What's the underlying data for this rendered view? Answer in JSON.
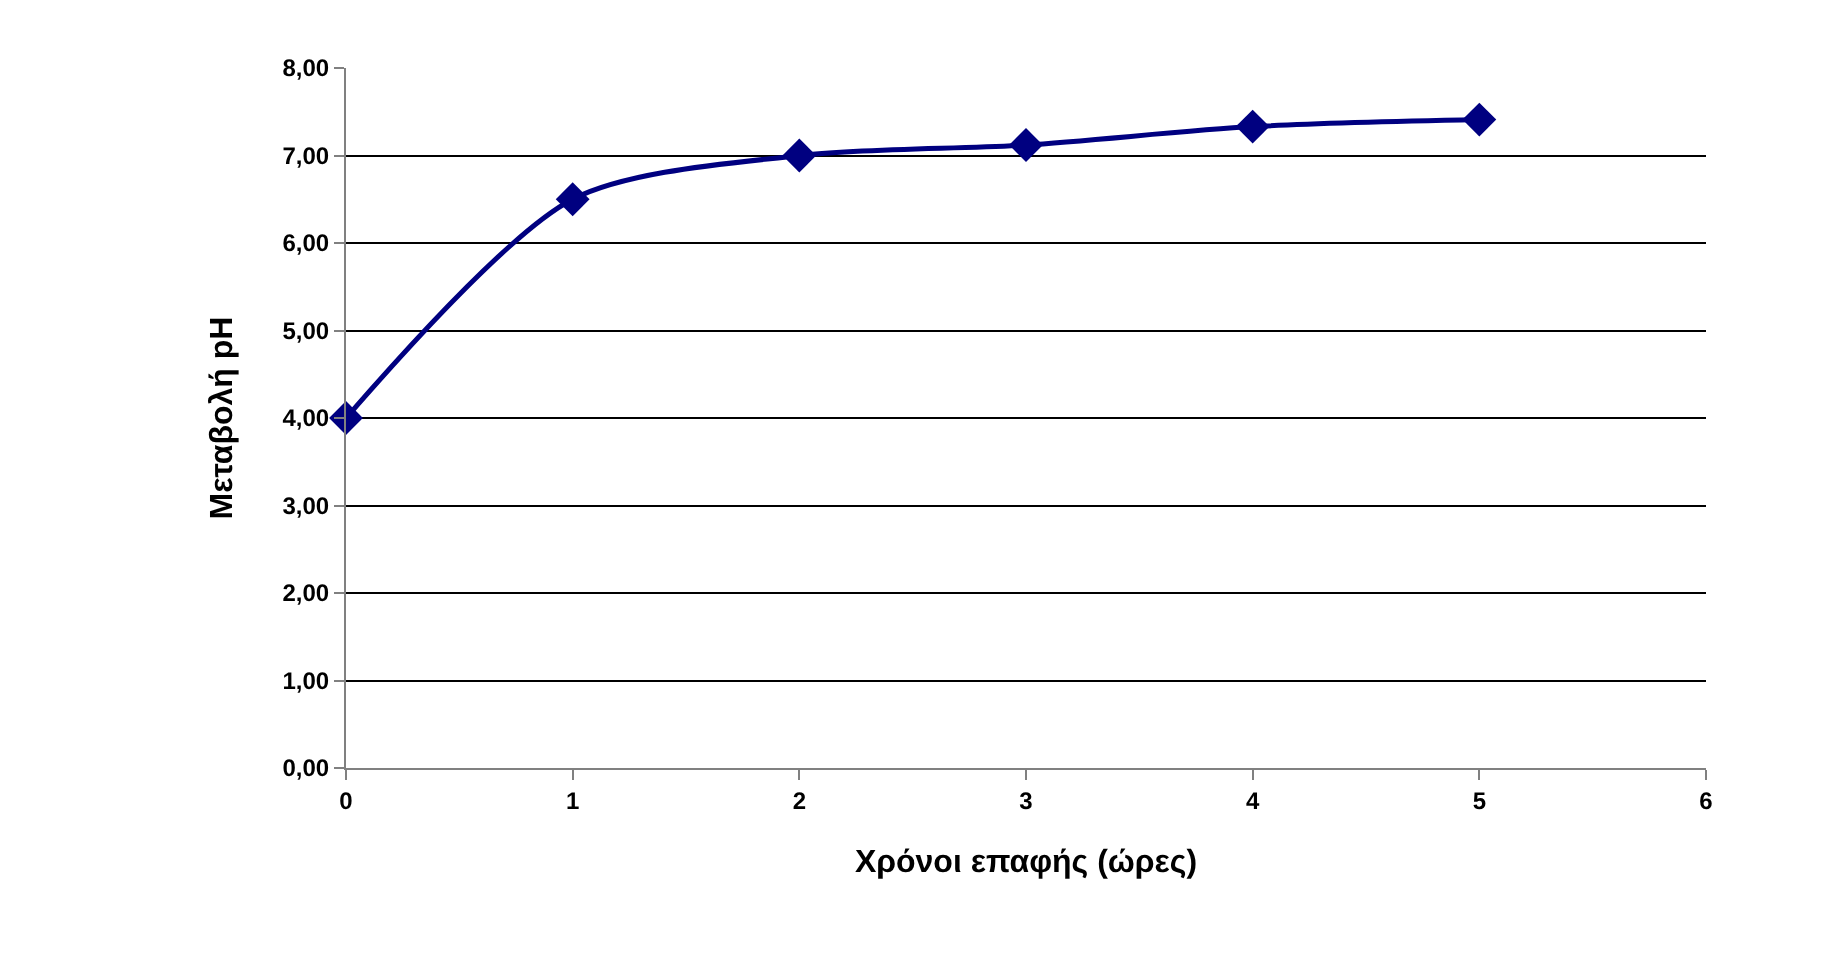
{
  "chart_data": {
    "type": "line",
    "xlabel": "Χρόνοι επαφής (ώρες)",
    "ylabel": "Μεταβολή pH",
    "x": [
      0,
      1,
      2,
      3,
      4,
      5
    ],
    "series": [
      {
        "color": "#000080",
        "values": [
          4.0,
          6.5,
          7.0,
          7.12,
          7.33,
          7.41
        ]
      }
    ],
    "xlim": [
      0,
      6
    ],
    "xticks": [
      0,
      1,
      2,
      3,
      4,
      5,
      6
    ],
    "ylim": [
      0,
      8
    ],
    "yticks": [
      {
        "value": 0,
        "label": "0,00"
      },
      {
        "value": 1,
        "label": "1,00"
      },
      {
        "value": 2,
        "label": "2,00"
      },
      {
        "value": 3,
        "label": "3,00"
      },
      {
        "value": 4,
        "label": "4,00"
      },
      {
        "value": 5,
        "label": "5,00"
      },
      {
        "value": 6,
        "label": "6,00"
      },
      {
        "value": 7,
        "label": "7,00"
      },
      {
        "value": 8,
        "label": "8,00"
      }
    ],
    "grid": "y",
    "marker": "diamond",
    "line_style": "solid"
  }
}
